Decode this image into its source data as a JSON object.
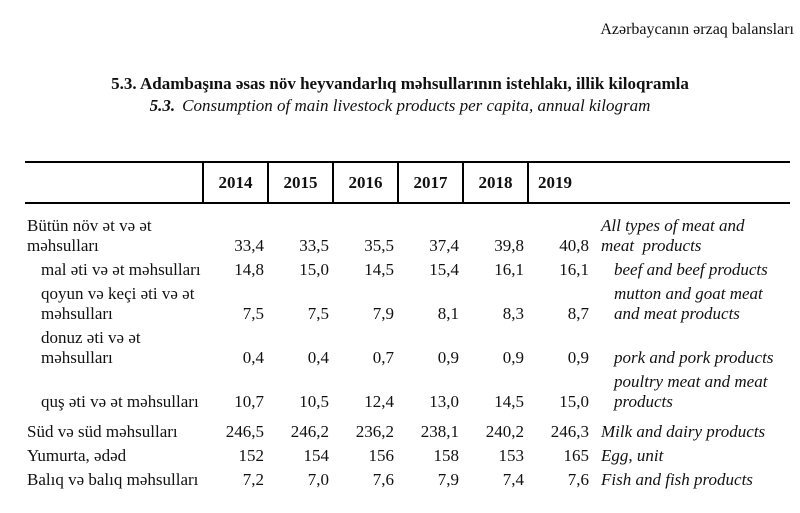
{
  "page_header": "Azərbaycanın ərzaq balansları",
  "title": {
    "az": "5.3. Adambaşına əsas növ heyvandarlıq məhsullarının istehlakı, illik kiloqramla",
    "en_prefix": "5.3.",
    "en_text": "Consumption of main livestock products per capita, annual kilogram"
  },
  "table": {
    "columns": [
      "2014",
      "2015",
      "2016",
      "2017",
      "2018",
      "2019"
    ],
    "rows": [
      {
        "az": [
          "Bütün növ ət və ət",
          "məhsulları"
        ],
        "values": [
          "33,4",
          "33,5",
          "35,5",
          "37,4",
          "39,8",
          "40,8"
        ],
        "en": [
          "All types of meat and",
          "meat  products"
        ],
        "indent": false,
        "section_gap": false
      },
      {
        "az": [
          "mal əti və ət məhsulları"
        ],
        "values": [
          "14,8",
          "15,0",
          "14,5",
          "15,4",
          "16,1",
          "16,1"
        ],
        "en": [
          "beef and beef products"
        ],
        "indent": true,
        "section_gap": false
      },
      {
        "az": [
          "qoyun və keçi əti və ət",
          "məhsulları"
        ],
        "values": [
          "7,5",
          "7,5",
          "7,9",
          "8,1",
          "8,3",
          "8,7"
        ],
        "en": [
          "mutton and goat meat",
          "and meat products"
        ],
        "indent": true,
        "section_gap": false
      },
      {
        "az": [
          "donuz əti və ət",
          "məhsulları"
        ],
        "values": [
          "0,4",
          "0,4",
          "0,7",
          "0,9",
          "0,9",
          "0,9"
        ],
        "en": [
          "pork and pork products"
        ],
        "indent": true,
        "section_gap": false
      },
      {
        "az": [
          "quş əti və ət məhsulları"
        ],
        "values": [
          "10,7",
          "10,5",
          "12,4",
          "13,0",
          "14,5",
          "15,0"
        ],
        "en": [
          "poultry meat and meat",
          "products"
        ],
        "indent": true,
        "section_gap": false
      },
      {
        "az": [
          "Süd və süd məhsulları"
        ],
        "values": [
          "246,5",
          "246,2",
          "236,2",
          "238,1",
          "240,2",
          "246,3"
        ],
        "en": [
          "Milk and dairy products"
        ],
        "indent": false,
        "section_gap": true
      },
      {
        "az": [
          "Yumurta, ədəd"
        ],
        "values": [
          "152",
          "154",
          "156",
          "158",
          "153",
          "165"
        ],
        "en": [
          "Egg, unit"
        ],
        "indent": false,
        "section_gap": false
      },
      {
        "az": [
          "Balıq və balıq məhsulları"
        ],
        "values": [
          "7,2",
          "7,0",
          "7,6",
          "7,9",
          "7,4",
          "7,6"
        ],
        "en": [
          "Fish and fish products"
        ],
        "indent": false,
        "section_gap": false
      }
    ]
  }
}
